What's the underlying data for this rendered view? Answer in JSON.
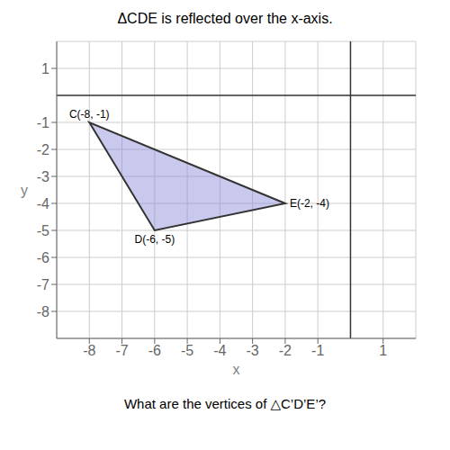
{
  "chart_data": {
    "type": "polygon",
    "title": "ΔCDE is reflected over the x-axis.",
    "subtitle": "What are the vertices of △C’D’E’?",
    "xlabel": "x",
    "ylabel": "y",
    "x": [
      -8,
      -6,
      -2
    ],
    "values": [
      -1,
      -5,
      -4
    ],
    "annotations": [
      {
        "text": "C(-8, -1)",
        "x": -8,
        "y": -1
      },
      {
        "text": "D(-6, -5)",
        "x": -6,
        "y": -5
      },
      {
        "text": "E(-2, -4)",
        "x": -2,
        "y": -4
      }
    ],
    "xlim": [
      -9,
      2
    ],
    "ylim": [
      -9,
      2
    ],
    "xticks": [
      -8,
      -7,
      -6,
      -5,
      -4,
      -3,
      -2,
      -1,
      1
    ],
    "yticks": [
      -8,
      -7,
      -6,
      -5,
      -4,
      -3,
      -2,
      -1,
      1
    ],
    "grid": true
  }
}
